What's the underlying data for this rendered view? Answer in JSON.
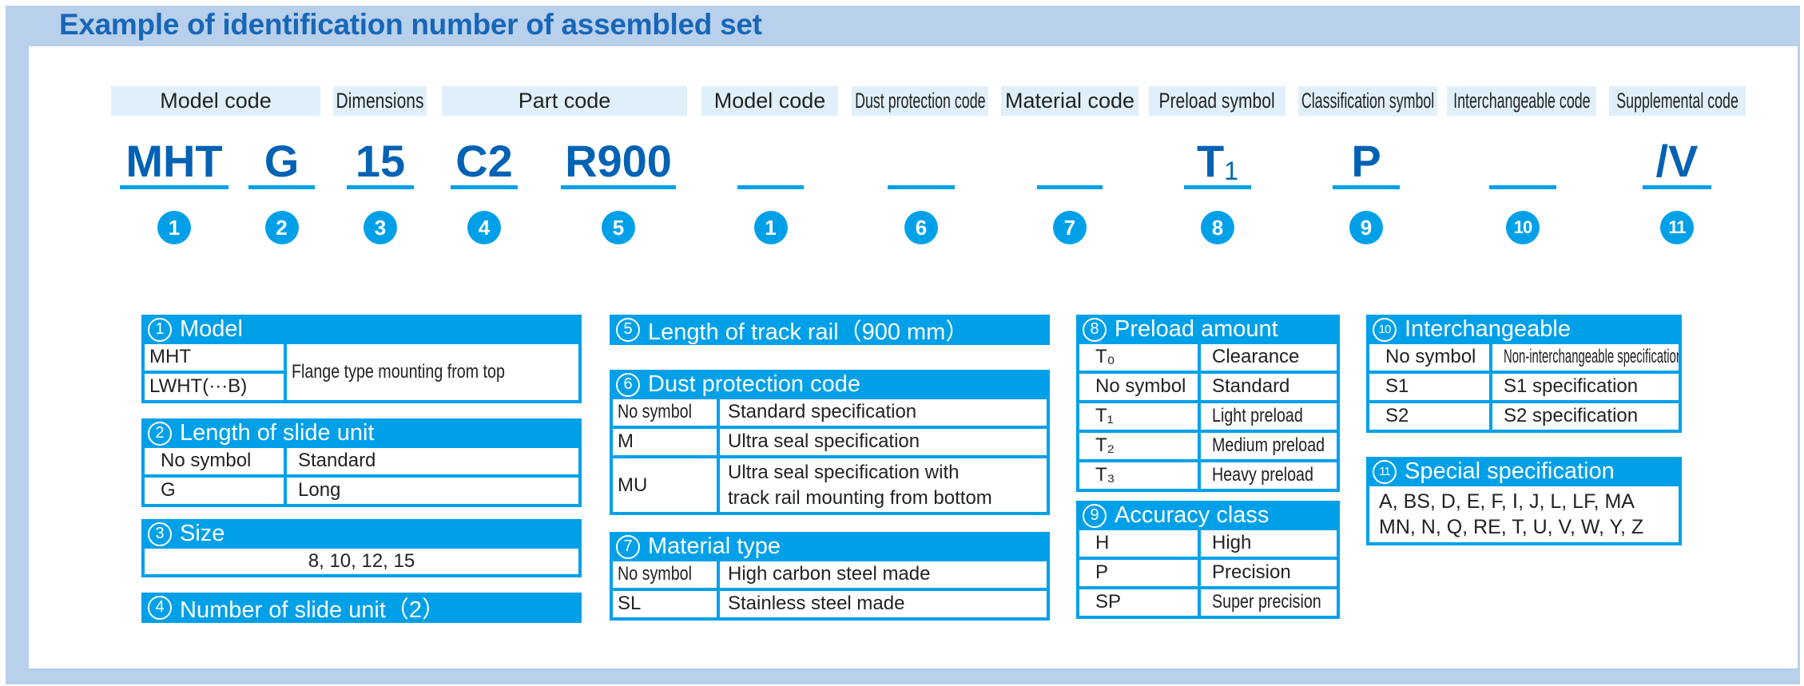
{
  "title": "Example of identification number of assembled set",
  "labels": [
    "Model code",
    "Dimensions",
    "Part code",
    "Model code",
    "Dust protection code",
    "Material code",
    "Preload symbol",
    "Classification symbol",
    "Interchangeable code",
    "Supplemental code"
  ],
  "codes": [
    {
      "text": "MHT",
      "num": "1"
    },
    {
      "text": "G",
      "num": "2"
    },
    {
      "text": "15",
      "num": "3"
    },
    {
      "text": "C2",
      "num": "4"
    },
    {
      "text": "R900",
      "num": "5"
    },
    {
      "text": "",
      "num": "1"
    },
    {
      "text": "",
      "num": "6"
    },
    {
      "text": "",
      "num": "7"
    },
    {
      "text": "T",
      "sub": "1",
      "num": "8"
    },
    {
      "text": "P",
      "num": "9"
    },
    {
      "text": "",
      "num": "10"
    },
    {
      "text": "/V",
      "num": "11"
    }
  ],
  "tables": {
    "model": {
      "num": "1",
      "title": "Model",
      "codes": [
        "MHT",
        "LWHT(···B)"
      ],
      "desc": "Flange type mounting from top"
    },
    "slide_length": {
      "num": "2",
      "title": "Length of slide unit",
      "rows": [
        [
          "No symbol",
          "Standard"
        ],
        [
          "G",
          "Long"
        ]
      ]
    },
    "size": {
      "num": "3",
      "title": "Size",
      "value": "8, 10, 12, 15"
    },
    "slide_count": {
      "num": "4",
      "title": "Number of slide unit（2）"
    },
    "rail_length": {
      "num": "5",
      "title": "Length of track rail（900 mm）"
    },
    "dust": {
      "num": "6",
      "title": "Dust protection code",
      "rows": [
        [
          "No symbol",
          "Standard specification"
        ],
        [
          "M",
          "Ultra seal specification"
        ],
        [
          "MU",
          "Ultra seal specification with\ntrack rail mounting from bottom"
        ]
      ]
    },
    "material": {
      "num": "7",
      "title": "Material type",
      "rows": [
        [
          "No symbol",
          "High carbon steel made"
        ],
        [
          "SL",
          "Stainless steel made"
        ]
      ]
    },
    "preload": {
      "num": "8",
      "title": "Preload amount",
      "rows": [
        [
          "T₀",
          "Clearance"
        ],
        [
          "No symbol",
          "Standard"
        ],
        [
          "T₁",
          "Light preload"
        ],
        [
          "T₂",
          "Medium preload"
        ],
        [
          "T₃",
          "Heavy preload"
        ]
      ]
    },
    "accuracy": {
      "num": "9",
      "title": "Accuracy class",
      "rows": [
        [
          "H",
          "High"
        ],
        [
          "P",
          "Precision"
        ],
        [
          "SP",
          "Super precision"
        ]
      ]
    },
    "interchangeable": {
      "num": "10",
      "title": "Interchangeable",
      "rows": [
        [
          "No symbol",
          "Non-interchangeable specification"
        ],
        [
          "S1",
          "S1 specification"
        ],
        [
          "S2",
          "S2 specification"
        ]
      ]
    },
    "special": {
      "num": "11",
      "title": "Special specification",
      "lines": [
        "A, BS, D, E, F, Ⅰ, J, L, LF, MA",
        "MN, N, Q, RE, T, U, V, W, Y, Z"
      ]
    }
  },
  "colors": {
    "frame": "#b8d0ec",
    "accent": "#00a0e9",
    "code_text": "#0062b4",
    "label_bg": "#dff0fa"
  }
}
